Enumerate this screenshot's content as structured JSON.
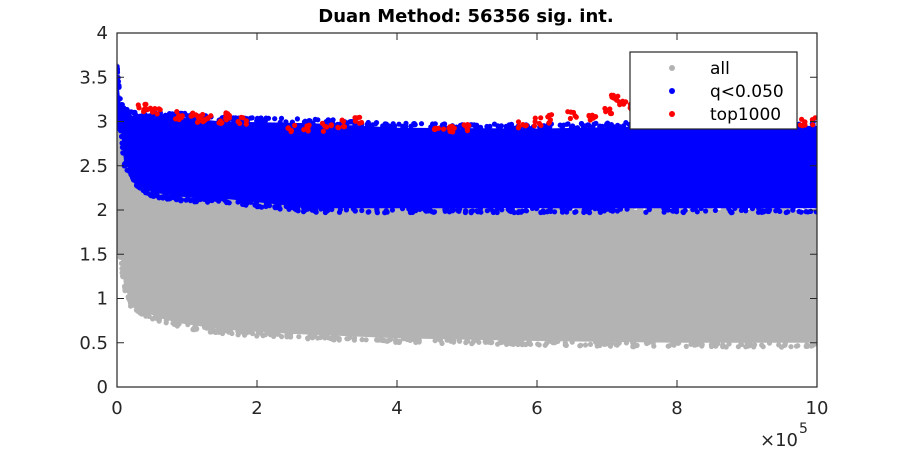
{
  "chart_data": {
    "type": "scatter",
    "title": "Duan Method: 56356 sig. int.",
    "xlabel": "",
    "ylabel": "",
    "xlim": [
      0,
      1000000
    ],
    "ylim": [
      0,
      4
    ],
    "x_multiplier_label": "×10",
    "x_multiplier_exponent": "5",
    "x_tick_values": [
      0,
      200000,
      400000,
      600000,
      800000,
      1000000
    ],
    "x_tick_labels": [
      "0",
      "2",
      "4",
      "6",
      "8",
      "10"
    ],
    "y_tick_values": [
      0,
      0.5,
      1,
      1.5,
      2,
      2.5,
      3,
      3.5,
      4
    ],
    "y_tick_labels": [
      "0",
      "0.5",
      "1",
      "1.5",
      "2",
      "2.5",
      "3",
      "3.5",
      "4"
    ],
    "grid": false,
    "legend_position": "top-right",
    "series": [
      {
        "name": "all",
        "color": "#b3b3b3",
        "envelope": {
          "x": [
            0,
            5000,
            10000,
            20000,
            40000,
            60000,
            90000,
            150000,
            250000,
            400000,
            600000,
            800000,
            1000000
          ],
          "y_low": [
            1.8,
            1.5,
            1.15,
            0.95,
            0.85,
            0.78,
            0.72,
            0.65,
            0.6,
            0.55,
            0.52,
            0.5,
            0.5
          ],
          "y_high": [
            3.6,
            3.0,
            2.8,
            2.6,
            2.45,
            2.3,
            2.2,
            2.15,
            2.1,
            2.05,
            2.0,
            2.0,
            2.0
          ]
        }
      },
      {
        "name": "q<0.050",
        "color": "#0000ff",
        "envelope": {
          "x": [
            0,
            5000,
            10000,
            30000,
            50000,
            90000,
            150000,
            280000,
            400000,
            600000,
            800000,
            1000000
          ],
          "y_low": [
            3.0,
            2.95,
            2.55,
            2.3,
            2.2,
            2.15,
            2.13,
            2.02,
            2.02,
            2.02,
            2.02,
            2.02
          ],
          "y_high": [
            3.6,
            3.2,
            3.1,
            3.05,
            3.05,
            3.05,
            3.0,
            2.98,
            2.93,
            2.92,
            2.95,
            2.95
          ]
        }
      },
      {
        "name": "top1000",
        "color": "#ff0000",
        "x": [
          35000,
          45000,
          55000,
          90000,
          110000,
          120000,
          130000,
          150000,
          160000,
          180000,
          250000,
          270000,
          300000,
          320000,
          345000,
          460000,
          480000,
          500000,
          580000,
          600000,
          620000,
          650000,
          680000,
          700000,
          710000,
          720000,
          740000,
          760000,
          780000,
          800000,
          830000,
          860000,
          900000,
          950000,
          980000,
          1000000
        ],
        "y": [
          3.2,
          3.18,
          3.15,
          3.12,
          3.1,
          3.08,
          3.07,
          3.05,
          3.1,
          3.05,
          2.98,
          2.98,
          2.98,
          3.02,
          3.05,
          2.97,
          2.97,
          2.99,
          3.02,
          3.05,
          3.08,
          3.12,
          3.1,
          3.15,
          3.35,
          3.28,
          3.2,
          3.25,
          3.15,
          3.12,
          3.1,
          3.08,
          3.05,
          3.08,
          3.03,
          3.05
        ]
      }
    ]
  }
}
